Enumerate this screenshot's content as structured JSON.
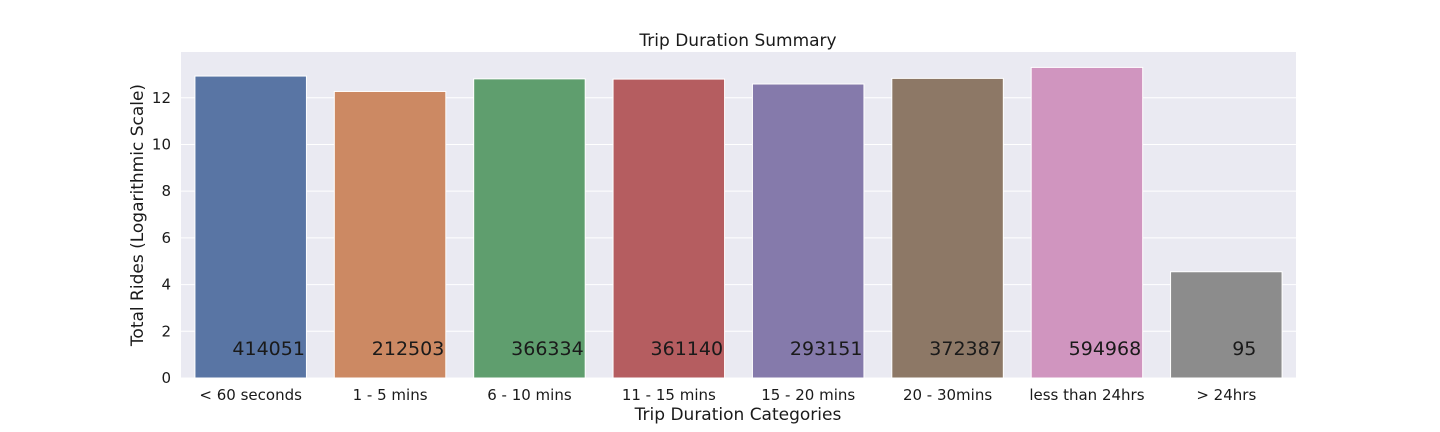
{
  "chart_data": {
    "type": "bar",
    "title": "Trip Duration Summary",
    "xlabel": "Trip Duration Categories",
    "ylabel": "Total Rides (Logarithmic Scale)",
    "categories": [
      "< 60 seconds",
      "1 - 5 mins",
      "6 - 10 mins",
      "11 - 15 mins",
      "15 - 20 mins",
      "20 - 30mins",
      "less than 24hrs",
      "> 24hrs"
    ],
    "values": [
      12.93,
      12.27,
      12.81,
      12.8,
      12.59,
      12.83,
      13.3,
      4.55
    ],
    "data_labels": [
      "414051",
      "212503",
      "366334",
      "361140",
      "293151",
      "372387",
      "594968",
      "95"
    ],
    "colors": [
      "#5975a4",
      "#cc8963",
      "#5f9e6e",
      "#b55d60",
      "#857aab",
      "#8d7866",
      "#d095bf",
      "#8c8c8c"
    ],
    "yticks": [
      0,
      2,
      4,
      6,
      8,
      10,
      12
    ],
    "ylim": [
      0,
      13.96
    ],
    "grid": true,
    "legend": "none"
  }
}
